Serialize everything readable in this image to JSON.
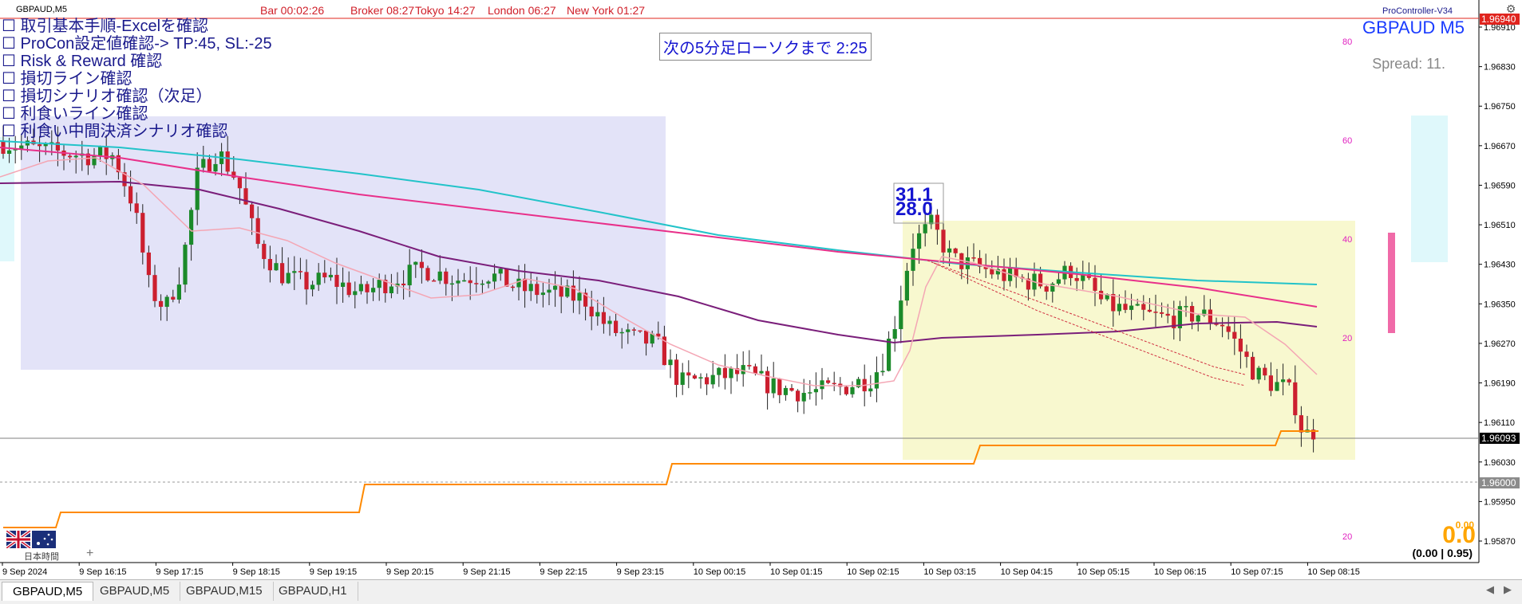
{
  "header": {
    "symbol_tf": "GBPAUD,M5",
    "bar": "Bar 00:02:26",
    "broker": "Broker 08:27",
    "tokyo": "Tokyo 14:27",
    "london": "London 06:27",
    "newyork": "New York 01:27",
    "indicator_name": "ProController-V34"
  },
  "checklist": [
    "☐ 取引基本手順-Excelを確認",
    "☐ ProCon設定値確認-> TP:45, SL:-25",
    "☐ Risk & Reward 確認",
    "☐ 損切ライン確認",
    "☐ 損切シナリオ確認（次足）",
    "☐ 利食いライン確認",
    "☐ 利食い中間決済シナリオ確認"
  ],
  "countdown": "次の5分足ローソクまで 2:25",
  "symbol_title": "GBPAUD M5",
  "spread": "Spread: 11.",
  "rr_top": "31.1",
  "rr_bottom": "28.0",
  "orange_big": "0.0",
  "orange_small": "0.00",
  "ratio": "(0.00 | 0.95)",
  "jp_time_label": "日本時間",
  "plus": "+",
  "chart_data": {
    "type": "candlestick",
    "symbol": "GBPAUD",
    "timeframe": "M5",
    "price_axis": [
      "1.96910",
      "1.96830",
      "1.96750",
      "1.96670",
      "1.96590",
      "1.96510",
      "1.96430",
      "1.96350",
      "1.96270",
      "1.96190",
      "1.96110",
      "1.96030",
      "1.95950",
      "1.95870"
    ],
    "ylim": [
      1.95825,
      1.96985
    ],
    "current_price": "1.96093",
    "red_level": "1.96940",
    "gray_level": "1.96000",
    "oscillator_levels": [
      "80",
      "60",
      "40",
      "20",
      "20"
    ],
    "time_axis": [
      "9 Sep 2024",
      "9 Sep 16:15",
      "9 Sep 17:15",
      "9 Sep 18:15",
      "9 Sep 19:15",
      "9 Sep 20:15",
      "9 Sep 21:15",
      "9 Sep 22:15",
      "9 Sep 23:15",
      "10 Sep 00:15",
      "10 Sep 01:15",
      "10 Sep 02:15",
      "10 Sep 03:15",
      "10 Sep 04:15",
      "10 Sep 05:15",
      "10 Sep 06:15",
      "10 Sep 07:15",
      "10 Sep 08:15"
    ],
    "colors": {
      "bull": "#1b8a2a",
      "bear": "#cc1f2f",
      "ma_cyan": "#22c3c9",
      "ma_pink": "#e8308a",
      "ma_purple": "#7a1e7a",
      "ma_light": "#f4a6b4",
      "stop": "#ff8a00"
    }
  },
  "tabs": [
    {
      "label": "GBPAUD,M5",
      "active": true
    },
    {
      "label": "GBPAUD,M5",
      "active": false
    },
    {
      "label": "GBPAUD,M15",
      "active": false
    },
    {
      "label": "GBPAUD,H1",
      "active": false
    }
  ]
}
